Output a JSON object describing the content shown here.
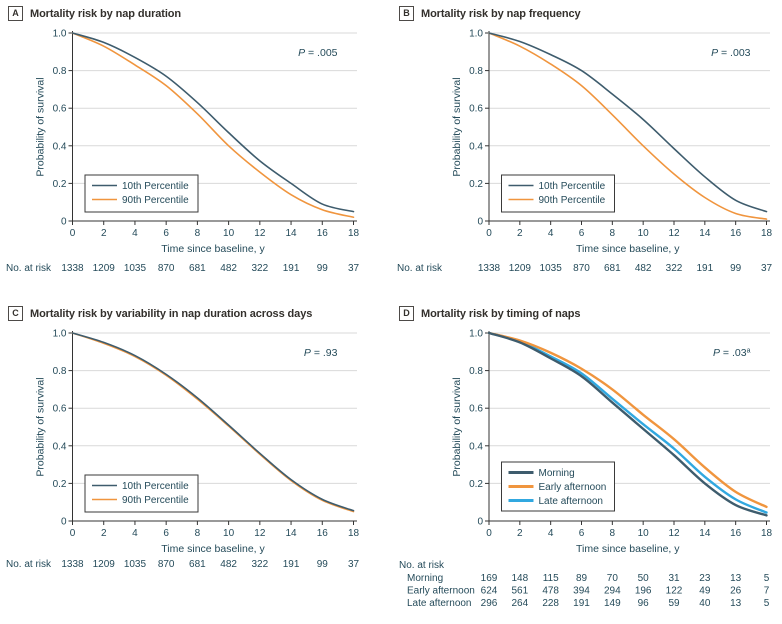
{
  "colors": {
    "series_dark": "#3e5c6d",
    "series_orange": "#f0953e",
    "series_blue": "#31a8e0",
    "grid": "#d9d9d9",
    "axis": "#333333",
    "text": "#254b5a",
    "title": "#33302c"
  },
  "chart_data": [
    {
      "letter": "A",
      "title": "Mortality risk by nap duration",
      "type": "line",
      "p_value": "P = .005",
      "p_sup": "",
      "xlabel": "Time since baseline, y",
      "ylabel": "Probability of survival",
      "xlim": [
        0,
        18
      ],
      "ylim": [
        0,
        1
      ],
      "x_ticks": [
        "0",
        "2",
        "4",
        "6",
        "8",
        "10",
        "12",
        "14",
        "16",
        "18"
      ],
      "y_ticks": [
        "0",
        "0.2",
        "0.4",
        "0.6",
        "0.8",
        "1.0"
      ],
      "x": [
        0,
        2,
        4,
        6,
        8,
        10,
        12,
        14,
        16,
        18
      ],
      "grid": true,
      "legend_position": "lower-left",
      "series": [
        {
          "name": "10th Percentile",
          "color_key": "series_dark",
          "values": [
            1.0,
            0.95,
            0.87,
            0.77,
            0.63,
            0.47,
            0.32,
            0.2,
            0.09,
            0.05
          ]
        },
        {
          "name": "90th Percentile",
          "color_key": "series_orange",
          "values": [
            1.0,
            0.93,
            0.83,
            0.72,
            0.57,
            0.4,
            0.26,
            0.14,
            0.06,
            0.02
          ]
        }
      ],
      "at_risk": {
        "label": "No. at risk",
        "rows": [
          {
            "name": "",
            "values": [
              "1338",
              "1209",
              "1035",
              "870",
              "681",
              "482",
              "322",
              "191",
              "99",
              "37"
            ]
          }
        ]
      }
    },
    {
      "letter": "B",
      "title": "Mortality risk by nap frequency",
      "type": "line",
      "p_value": "P = .003",
      "p_sup": "",
      "xlabel": "Time since baseline, y",
      "ylabel": "Probability of survival",
      "xlim": [
        0,
        18
      ],
      "ylim": [
        0,
        1
      ],
      "x_ticks": [
        "0",
        "2",
        "4",
        "6",
        "8",
        "10",
        "12",
        "14",
        "16",
        "18"
      ],
      "y_ticks": [
        "0",
        "0.2",
        "0.4",
        "0.6",
        "0.8",
        "1.0"
      ],
      "x": [
        0,
        2,
        4,
        6,
        8,
        10,
        12,
        14,
        16,
        18
      ],
      "grid": true,
      "legend_position": "lower-left",
      "series": [
        {
          "name": "10th Percentile",
          "color_key": "series_dark",
          "values": [
            1.0,
            0.955,
            0.885,
            0.8,
            0.675,
            0.54,
            0.385,
            0.235,
            0.11,
            0.05
          ]
        },
        {
          "name": "90th Percentile",
          "color_key": "series_orange",
          "values": [
            1.0,
            0.93,
            0.835,
            0.72,
            0.565,
            0.4,
            0.25,
            0.125,
            0.04,
            0.01
          ]
        }
      ],
      "at_risk": {
        "label": "No. at risk",
        "rows": [
          {
            "name": "",
            "values": [
              "1338",
              "1209",
              "1035",
              "870",
              "681",
              "482",
              "322",
              "191",
              "99",
              "37"
            ]
          }
        ]
      }
    },
    {
      "letter": "C",
      "title": "Mortality risk by variability in nap duration across days",
      "type": "line",
      "p_value": "P = .93",
      "p_sup": "",
      "xlabel": "Time since baseline, y",
      "ylabel": "Probability of survival",
      "xlim": [
        0,
        18
      ],
      "ylim": [
        0,
        1
      ],
      "x_ticks": [
        "0",
        "2",
        "4",
        "6",
        "8",
        "10",
        "12",
        "14",
        "16",
        "18"
      ],
      "y_ticks": [
        "0",
        "0.2",
        "0.4",
        "0.6",
        "0.8",
        "1.0"
      ],
      "x": [
        0,
        2,
        4,
        6,
        8,
        10,
        12,
        14,
        16,
        18
      ],
      "grid": true,
      "legend_position": "lower-left",
      "series": [
        {
          "name": "10th Percentile",
          "color_key": "series_dark",
          "values": [
            1.0,
            0.95,
            0.88,
            0.78,
            0.655,
            0.51,
            0.36,
            0.22,
            0.115,
            0.055
          ]
        },
        {
          "name": "90th Percentile",
          "color_key": "series_orange",
          "values": [
            1.0,
            0.945,
            0.875,
            0.775,
            0.648,
            0.505,
            0.355,
            0.215,
            0.11,
            0.05
          ]
        }
      ],
      "at_risk": {
        "label": "No. at risk",
        "rows": [
          {
            "name": "",
            "values": [
              "1338",
              "1209",
              "1035",
              "870",
              "681",
              "482",
              "322",
              "191",
              "99",
              "37"
            ]
          }
        ]
      }
    },
    {
      "letter": "D",
      "title": "Mortality risk by timing of naps",
      "type": "line",
      "p_value": "P = .03",
      "p_sup": "a",
      "xlabel": "Time since baseline, y",
      "ylabel": "Probability of survival",
      "xlim": [
        0,
        18
      ],
      "ylim": [
        0,
        1
      ],
      "x_ticks": [
        "0",
        "2",
        "4",
        "6",
        "8",
        "10",
        "12",
        "14",
        "16",
        "18"
      ],
      "y_ticks": [
        "0",
        "0.2",
        "0.4",
        "0.6",
        "0.8",
        "1.0"
      ],
      "x": [
        0,
        2,
        4,
        6,
        8,
        10,
        12,
        14,
        16,
        18
      ],
      "grid": true,
      "legend_position": "lower-left",
      "series": [
        {
          "name": "Morning",
          "color_key": "series_dark",
          "values": [
            1.0,
            0.95,
            0.865,
            0.77,
            0.63,
            0.49,
            0.35,
            0.2,
            0.085,
            0.03
          ]
        },
        {
          "name": "Early afternoon",
          "color_key": "series_orange",
          "values": [
            1.0,
            0.96,
            0.895,
            0.81,
            0.7,
            0.565,
            0.435,
            0.285,
            0.155,
            0.075
          ]
        },
        {
          "name": "Late afternoon",
          "color_key": "series_blue",
          "values": [
            1.0,
            0.955,
            0.875,
            0.785,
            0.65,
            0.515,
            0.385,
            0.235,
            0.115,
            0.045
          ]
        }
      ],
      "at_risk": {
        "label": "No. at risk",
        "rows": [
          {
            "name": "Morning",
            "values": [
              "169",
              "148",
              "115",
              "89",
              "70",
              "50",
              "31",
              "23",
              "13",
              "5"
            ]
          },
          {
            "name": "Early afternoon",
            "values": [
              "624",
              "561",
              "478",
              "394",
              "294",
              "196",
              "122",
              "49",
              "26",
              "7"
            ]
          },
          {
            "name": "Late afternoon",
            "values": [
              "296",
              "264",
              "228",
              "191",
              "149",
              "96",
              "59",
              "40",
              "13",
              "5"
            ]
          }
        ]
      }
    }
  ]
}
